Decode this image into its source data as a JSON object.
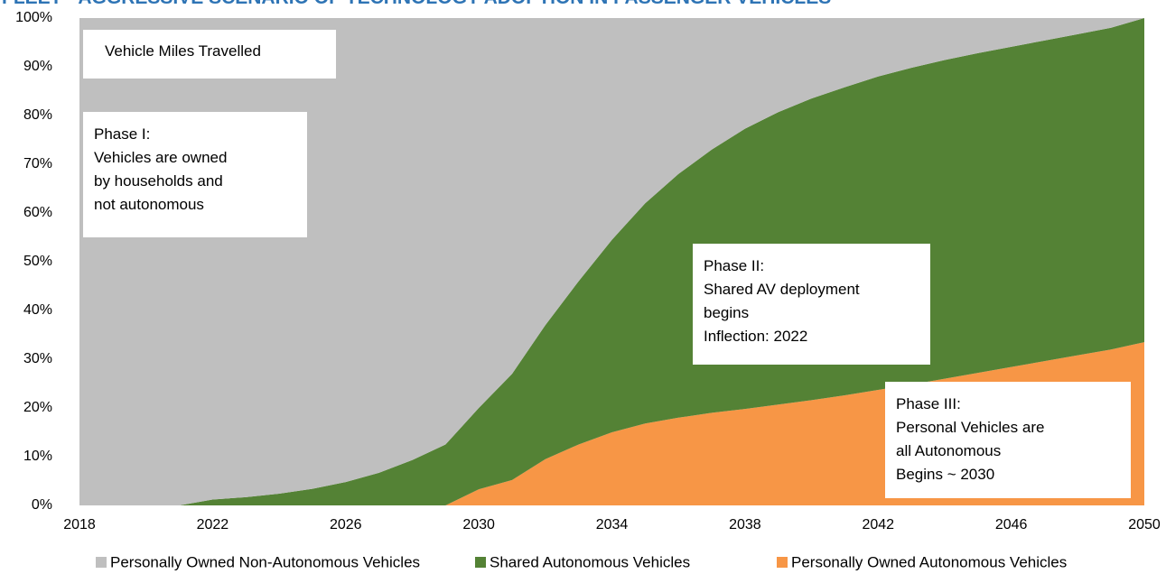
{
  "chart_data": {
    "type": "stacked_area",
    "title": "FLEET - AGGRESSIVE SCENARIO OF TECHNOLOGY ADOPTION IN PASSENGER VEHICLES",
    "x": [
      2018,
      2019,
      2020,
      2021,
      2022,
      2023,
      2024,
      2025,
      2026,
      2027,
      2028,
      2029,
      2030,
      2031,
      2032,
      2033,
      2034,
      2035,
      2036,
      2037,
      2038,
      2039,
      2040,
      2041,
      2042,
      2043,
      2044,
      2045,
      2046,
      2047,
      2048,
      2049,
      2050
    ],
    "series": [
      {
        "name": "Personally Owned Non-Autonomous Vehicles",
        "color": "#bfbfbf",
        "values": [
          100,
          100,
          100,
          100,
          98.8,
          98.3,
          97.6,
          96.6,
          95.2,
          93.3,
          90.7,
          87.5,
          80,
          73,
          63,
          54,
          45.5,
          38,
          32,
          27,
          22.7,
          19.3,
          16.5,
          14.2,
          12,
          10.2,
          8.6,
          7.2,
          5.9,
          4.6,
          3.3,
          2,
          0
        ]
      },
      {
        "name": "Shared Autonomous Vehicles",
        "color": "#548235",
        "values": [
          0,
          0,
          0,
          0,
          1.2,
          1.7,
          2.4,
          3.4,
          4.8,
          6.7,
          9.3,
          12.5,
          16.7,
          21.8,
          27.5,
          33.5,
          39.5,
          45.2,
          50,
          54,
          57.5,
          60,
          61.9,
          63.2,
          64.3,
          65,
          65.4,
          65.6,
          65.7,
          65.8,
          65.9,
          66,
          66.5
        ]
      },
      {
        "name": "Personally Owned Autonomous Vehicles",
        "color": "#f79646",
        "values": [
          0,
          0,
          0,
          0,
          0,
          0,
          0,
          0,
          0,
          0,
          0,
          0,
          3.3,
          5.2,
          9.5,
          12.5,
          15,
          16.8,
          18,
          19,
          19.8,
          20.7,
          21.6,
          22.6,
          23.7,
          24.8,
          26,
          27.2,
          28.4,
          29.6,
          30.8,
          32,
          33.5
        ]
      }
    ],
    "xlim": [
      2018,
      2050
    ],
    "xticks": [
      2018,
      2022,
      2026,
      2030,
      2034,
      2038,
      2042,
      2046,
      2050
    ],
    "ylim": [
      0,
      100
    ],
    "yticks": [
      {
        "value": 0,
        "label": "0%"
      },
      {
        "value": 10,
        "label": "10%"
      },
      {
        "value": 20,
        "label": "20%"
      },
      {
        "value": 30,
        "label": "30%"
      },
      {
        "value": 40,
        "label": "40%"
      },
      {
        "value": 50,
        "label": "50%"
      },
      {
        "value": 60,
        "label": "60%"
      },
      {
        "value": 70,
        "label": "70%"
      },
      {
        "value": 80,
        "label": "80%"
      },
      {
        "value": 90,
        "label": "90%"
      },
      {
        "value": 100,
        "label": "100%"
      }
    ],
    "legend": "bottom",
    "annotations": [
      {
        "lines": [
          "Vehicle Miles Travelled"
        ]
      },
      {
        "lines": [
          "Phase I:",
          "Vehicles are owned",
          "by households and",
          "not autonomous"
        ]
      },
      {
        "lines": [
          "Phase II:",
          "Shared AV deployment",
          "begins",
          "Inflection: 2022"
        ]
      },
      {
        "lines": [
          "Phase III:",
          "Personal Vehicles are",
          "all Autonomous",
          "Begins ~ 2030"
        ]
      }
    ]
  }
}
